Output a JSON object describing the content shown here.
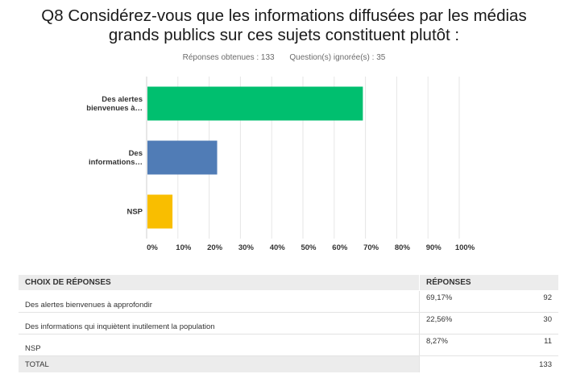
{
  "title_lines": [
    "Q8 Considérez-vous que les informations diffusées par les médias",
    "grands publics sur ces sujets constituent plutôt :"
  ],
  "meta": {
    "answered": "Réponses obtenues : 133",
    "skipped": "Question(s) ignorée(s) : 35"
  },
  "chart_data": {
    "type": "bar",
    "orientation": "horizontal",
    "categories": [
      "Des alertes bienvenues à…",
      "Des informations…",
      "NSP"
    ],
    "category_lines": [
      [
        "Des alertes",
        "bienvenues à…"
      ],
      [
        "Des",
        "informations…"
      ],
      [
        "NSP"
      ]
    ],
    "values": [
      69.17,
      22.56,
      8.27
    ],
    "colors": [
      "#00bf6f",
      "#507cb6",
      "#f9be00"
    ],
    "xlim": [
      0,
      100
    ],
    "xticks": [
      "0%",
      "10%",
      "20%",
      "30%",
      "40%",
      "50%",
      "60%",
      "70%",
      "80%",
      "90%",
      "100%"
    ],
    "grid": true
  },
  "table": {
    "headers": {
      "choice": "CHOIX DE RÉPONSES",
      "responses": "RÉPONSES"
    },
    "rows": [
      {
        "label": "Des alertes bienvenues à approfondir",
        "percent": "69,17%",
        "count": "92"
      },
      {
        "label": "Des informations qui inquiètent inutilement la population",
        "percent": "22,56%",
        "count": "30"
      },
      {
        "label": "NSP",
        "percent": "8,27%",
        "count": "11"
      }
    ],
    "total_label": "TOTAL",
    "total_count": "133"
  }
}
